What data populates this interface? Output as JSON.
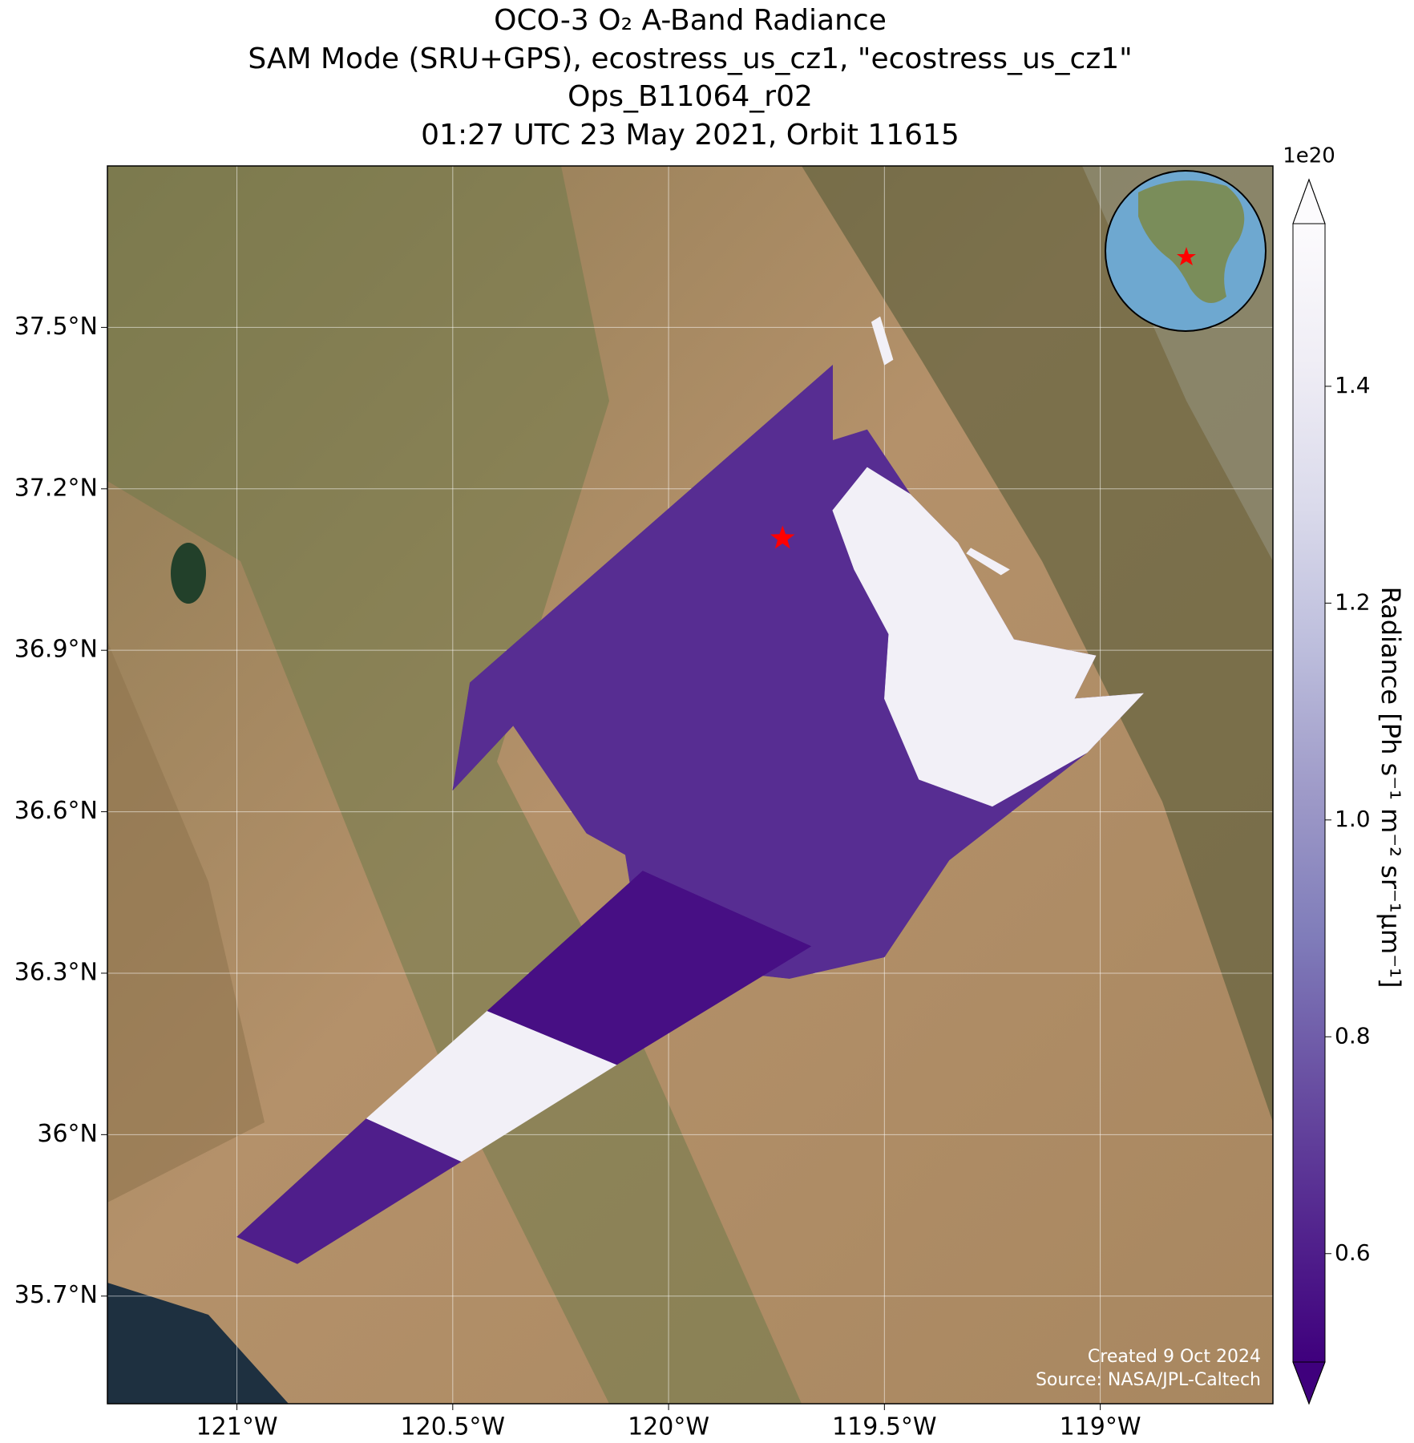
{
  "chart_data": {
    "type": "map",
    "title": [
      "OCO-3 O₂ A-Band Radiance",
      "SAM Mode (SRU+GPS), ecostress_us_cz1, \"ecostress_us_cz1\"",
      "Ops_B11064_r02",
      "01:27 UTC 23 May 2021, Orbit 11615"
    ],
    "xlim": [
      -121.3,
      -118.6
    ],
    "ylim": [
      35.5,
      37.8
    ],
    "xticks": [
      {
        "value": -121,
        "label": "121°W"
      },
      {
        "value": -120.5,
        "label": "120.5°W"
      },
      {
        "value": -120,
        "label": "120°W"
      },
      {
        "value": -119.5,
        "label": "119.5°W"
      },
      {
        "value": -119,
        "label": "119°W"
      }
    ],
    "yticks": [
      {
        "value": 35.7,
        "label": "35.7°N"
      },
      {
        "value": 36,
        "label": "36°N"
      },
      {
        "value": 36.3,
        "label": "36.3°N"
      },
      {
        "value": 36.6,
        "label": "36.6°N"
      },
      {
        "value": 36.9,
        "label": "36.9°N"
      },
      {
        "value": 37.2,
        "label": "37.2°N"
      },
      {
        "value": 37.5,
        "label": "37.5°N"
      }
    ],
    "grid": true,
    "colorbar": {
      "label": "Radiance [Ph s⁻¹ m⁻² sr⁻¹μm⁻¹]",
      "exponent_label": "1e20",
      "lim": [
        0.5,
        1.55
      ],
      "ticks": [
        0.6,
        0.8,
        {
          "value": 1,
          "label": "1.0"
        },
        1.2,
        1.4
      ],
      "colormap": [
        "#3f007d",
        "#54278f",
        "#6a51a3",
        "#807dba",
        "#9e9ac8",
        "#bcbddc",
        "#dadaeb",
        "#efedf5",
        "#fcfbfd"
      ]
    },
    "regions": [
      {
        "value": 0.65,
        "lon": [
          -120.5,
          -120.46,
          -119.62,
          -119.62,
          -119.54,
          -119.44,
          -119.33,
          -119.2,
          -119.01,
          -119.06,
          -118.9,
          -119.03,
          -119.35,
          -119.5,
          -119.72,
          -120.06,
          -120.1,
          -120.19,
          -120.36
        ],
        "lat": [
          36.64,
          36.84,
          37.43,
          37.29,
          37.31,
          37.19,
          37.1,
          36.92,
          36.89,
          36.81,
          36.82,
          36.71,
          36.51,
          36.33,
          36.29,
          36.32,
          36.52,
          36.56,
          36.76
        ]
      },
      {
        "value": 1.45,
        "lon": [
          -119.62,
          -119.54,
          -119.44,
          -119.33,
          -119.2,
          -119.01,
          -119.06,
          -118.9,
          -119.03,
          -119.25,
          -119.42,
          -119.5,
          -119.49,
          -119.57
        ],
        "lat": [
          37.16,
          37.24,
          37.19,
          37.1,
          36.92,
          36.89,
          36.81,
          36.82,
          36.71,
          36.61,
          36.66,
          36.81,
          36.93,
          37.05
        ]
      },
      {
        "value": 0.6,
        "lon": [
          -121.0,
          -120.7,
          -120.48,
          -120.86
        ],
        "lat": [
          35.81,
          36.03,
          35.95,
          35.76
        ]
      },
      {
        "value": 1.45,
        "lon": [
          -120.7,
          -120.42,
          -120.12,
          -120.48
        ],
        "lat": [
          36.03,
          36.23,
          36.13,
          35.95
        ]
      },
      {
        "value": 0.55,
        "lon": [
          -120.42,
          -120.06,
          -119.67,
          -120.12
        ],
        "lat": [
          36.23,
          36.49,
          36.35,
          36.13
        ]
      },
      {
        "value": 1.45,
        "lon": [
          -119.53,
          -119.51,
          -119.48,
          -119.5
        ],
        "lat": [
          37.51,
          37.52,
          37.44,
          37.43
        ]
      },
      {
        "value": 1.45,
        "lon": [
          -119.31,
          -119.3,
          -119.21,
          -119.23
        ],
        "lat": [
          37.08,
          37.09,
          37.05,
          37.04
        ]
      }
    ],
    "target": {
      "lon": -119.736,
      "lat": 37.108,
      "color": "#ff0000"
    },
    "credits": [
      "Created 9 Oct 2024",
      "Source: NASA/JPL-Caltech"
    ]
  }
}
